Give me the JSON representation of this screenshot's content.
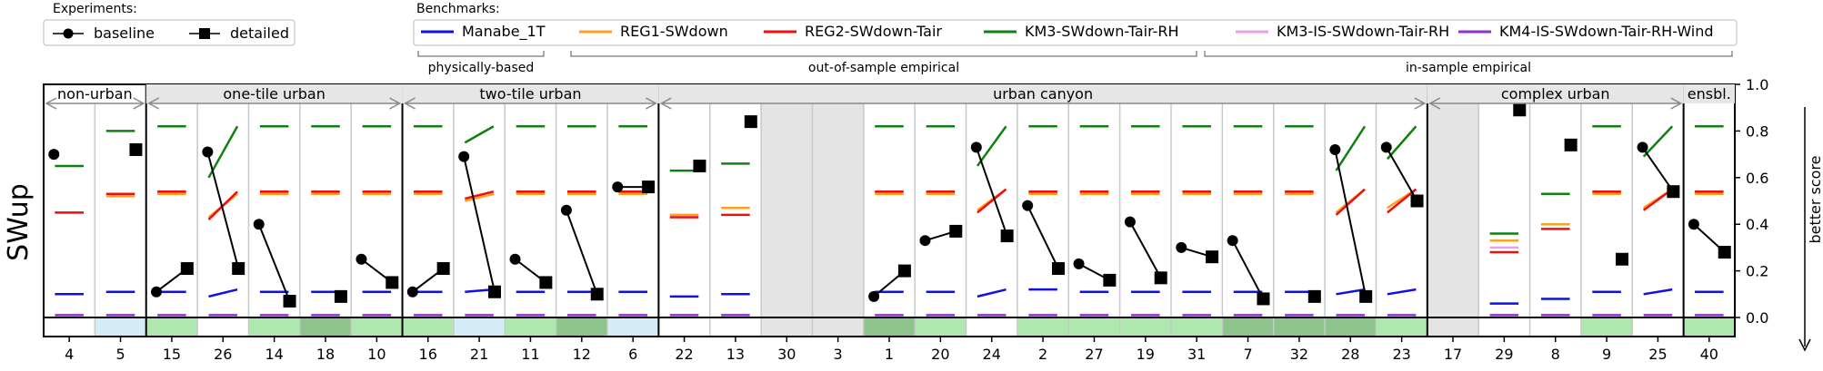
{
  "chart_data": {
    "type": "line",
    "ylabel": "SWup",
    "ylim": [
      -0.08,
      1.0
    ],
    "y_ticks": [
      "1.0",
      "0.8",
      "0.6",
      "0.4",
      "0.2",
      "0.0"
    ],
    "y_tick_values": [
      1.0,
      0.8,
      0.6,
      0.4,
      0.2,
      0.0
    ],
    "better_score_label": "better score",
    "experiments_title": "Experiments:",
    "experiments": [
      {
        "name": "baseline",
        "marker": "circle"
      },
      {
        "name": "detailed",
        "marker": "square"
      }
    ],
    "benchmarks_title": "Benchmarks:",
    "benchmarks": [
      {
        "key": "manabe",
        "name": "Manabe_1T",
        "color": "#1010e0"
      },
      {
        "key": "reg1",
        "name": "REG1-SWdown",
        "color": "#ffa020"
      },
      {
        "key": "reg2",
        "name": "REG2-SWdown-Tair",
        "color": "#ee1010"
      },
      {
        "key": "km3",
        "name": "KM3-SWdown-Tair-RH",
        "color": "#108010"
      },
      {
        "key": "km3is",
        "name": "KM3-IS-SWdown-Tair-RH",
        "color": "#e8a0e8"
      },
      {
        "key": "km4is",
        "name": "KM4-IS-SWdown-Tair-RH-Wind",
        "color": "#9030d0"
      }
    ],
    "benchmark_groups": [
      "physically-based",
      "out-of-sample empirical",
      "in-sample empirical"
    ],
    "colors": {
      "shade": "#e6e6e6",
      "light_blue": "#d4ecf8",
      "light_green": "#aee8ae",
      "dark_green": "#8cc48c",
      "gray": "#e4e4e4"
    },
    "groups": [
      {
        "label": "non-urban",
        "start": 0,
        "end": 2,
        "shaded": false
      },
      {
        "label": "one-tile urban",
        "start": 2,
        "end": 7,
        "shaded": true
      },
      {
        "label": "two-tile urban",
        "start": 7,
        "end": 12,
        "shaded": true
      },
      {
        "label": "urban canyon",
        "start": 12,
        "end": 27,
        "shaded": true
      },
      {
        "label": "complex urban",
        "start": 27,
        "end": 32,
        "shaded": true
      },
      {
        "label": "ensbl.",
        "start": 32,
        "end": 33,
        "shaded": true
      }
    ],
    "sites": [
      {
        "id": "4",
        "baseline": 0.7,
        "detailed": null,
        "manabe": 0.1,
        "reg1": 0.45,
        "reg2": 0.45,
        "km3": 0.65,
        "km4is": 0.01,
        "bottom": "white"
      },
      {
        "id": "5",
        "baseline": null,
        "detailed": 0.72,
        "manabe": 0.11,
        "reg1": 0.52,
        "reg2": 0.53,
        "km3": 0.8,
        "km4is": 0.01,
        "bottom": "light_blue"
      },
      {
        "id": "15",
        "baseline": 0.11,
        "detailed": 0.21,
        "manabe": 0.11,
        "reg1": 0.53,
        "reg2": 0.54,
        "km3": 0.82,
        "km4is": 0.01,
        "bottom": "light_green"
      },
      {
        "id": "26",
        "baseline": 0.71,
        "detailed": 0.21,
        "manabe": 0.09,
        "manabe_end": 0.12,
        "reg1": 0.43,
        "reg1_end": 0.53,
        "reg2": 0.42,
        "reg2_end": 0.54,
        "km3": 0.6,
        "km3_end": 0.82,
        "km4is": 0.01,
        "bottom": "white"
      },
      {
        "id": "14",
        "baseline": 0.4,
        "detailed": 0.07,
        "manabe": 0.11,
        "reg1": 0.53,
        "reg2": 0.54,
        "km3": 0.82,
        "km4is": 0.01,
        "bottom": "light_green"
      },
      {
        "id": "18",
        "baseline": null,
        "detailed": 0.09,
        "manabe": 0.11,
        "reg1": 0.53,
        "reg2": 0.54,
        "km3": 0.82,
        "km4is": 0.01,
        "bottom": "dark_green"
      },
      {
        "id": "10",
        "baseline": 0.25,
        "detailed": 0.15,
        "manabe": 0.11,
        "reg1": 0.53,
        "reg2": 0.54,
        "km3": 0.82,
        "km4is": 0.01,
        "bottom": "light_green"
      },
      {
        "id": "16",
        "baseline": 0.11,
        "detailed": 0.21,
        "manabe": 0.11,
        "reg1": 0.53,
        "reg2": 0.54,
        "km3": 0.82,
        "km4is": 0.01,
        "bottom": "light_green"
      },
      {
        "id": "21",
        "baseline": 0.69,
        "detailed": 0.11,
        "manabe": 0.11,
        "manabe_end": 0.12,
        "reg1": 0.5,
        "reg1_end": 0.53,
        "reg2": 0.51,
        "reg2_end": 0.54,
        "km3": 0.75,
        "km3_end": 0.82,
        "km4is": 0.01,
        "bottom": "light_blue"
      },
      {
        "id": "11",
        "baseline": 0.25,
        "detailed": 0.15,
        "manabe": 0.11,
        "reg1": 0.53,
        "reg2": 0.54,
        "km3": 0.82,
        "km4is": 0.01,
        "bottom": "light_green"
      },
      {
        "id": "12",
        "baseline": 0.46,
        "detailed": 0.1,
        "manabe": 0.11,
        "reg1": 0.53,
        "reg2": 0.54,
        "km3": 0.82,
        "km4is": 0.01,
        "bottom": "dark_green"
      },
      {
        "id": "6",
        "baseline": 0.56,
        "detailed": 0.56,
        "manabe": 0.11,
        "reg1": 0.53,
        "reg2": 0.54,
        "km3": 0.82,
        "km4is": 0.01,
        "bottom": "light_blue"
      },
      {
        "id": "22",
        "baseline": null,
        "detailed": 0.65,
        "manabe": 0.09,
        "reg1": 0.44,
        "reg2": 0.43,
        "km3": 0.63,
        "km4is": 0.01,
        "bottom": "white"
      },
      {
        "id": "13",
        "baseline": null,
        "detailed": 0.84,
        "manabe": 0.1,
        "reg1": 0.47,
        "reg2": 0.44,
        "km3": 0.66,
        "km4is": 0.01,
        "bottom": "white"
      },
      {
        "id": "30",
        "baseline": null,
        "detailed": null,
        "gray": true,
        "bottom": "gray"
      },
      {
        "id": "3",
        "baseline": null,
        "detailed": null,
        "gray": true,
        "bottom": "gray"
      },
      {
        "id": "1",
        "baseline": 0.09,
        "detailed": 0.2,
        "manabe": 0.11,
        "reg1": 0.53,
        "reg2": 0.54,
        "km3": 0.82,
        "km4is": 0.01,
        "bottom": "dark_green"
      },
      {
        "id": "20",
        "baseline": 0.33,
        "detailed": 0.37,
        "manabe": 0.11,
        "reg1": 0.53,
        "reg2": 0.54,
        "km3": 0.82,
        "km4is": 0.01,
        "bottom": "light_green"
      },
      {
        "id": "24",
        "baseline": 0.73,
        "detailed": 0.35,
        "manabe": 0.09,
        "manabe_end": 0.12,
        "reg1": 0.46,
        "reg1_end": 0.55,
        "reg2": 0.45,
        "reg2_end": 0.55,
        "km3": 0.65,
        "km3_end": 0.82,
        "km4is": 0.01,
        "bottom": "white"
      },
      {
        "id": "2",
        "baseline": 0.48,
        "detailed": 0.21,
        "manabe": 0.12,
        "reg1": 0.53,
        "reg2": 0.54,
        "km3": 0.82,
        "km4is": 0.01,
        "bottom": "light_green"
      },
      {
        "id": "27",
        "baseline": 0.23,
        "detailed": 0.16,
        "manabe": 0.11,
        "reg1": 0.53,
        "reg2": 0.54,
        "km3": 0.82,
        "km4is": 0.01,
        "bottom": "light_green"
      },
      {
        "id": "19",
        "baseline": 0.41,
        "detailed": 0.17,
        "manabe": 0.11,
        "reg1": 0.53,
        "reg2": 0.54,
        "km3": 0.82,
        "km4is": 0.01,
        "bottom": "light_green"
      },
      {
        "id": "31",
        "baseline": 0.3,
        "detailed": 0.26,
        "manabe": 0.11,
        "reg1": 0.53,
        "reg2": 0.54,
        "km3": 0.82,
        "km4is": 0.01,
        "bottom": "light_green"
      },
      {
        "id": "7",
        "baseline": 0.33,
        "detailed": 0.08,
        "manabe": 0.11,
        "reg1": 0.53,
        "reg2": 0.54,
        "km3": 0.82,
        "km4is": 0.01,
        "bottom": "dark_green"
      },
      {
        "id": "32",
        "baseline": null,
        "detailed": 0.09,
        "manabe": 0.11,
        "reg1": 0.53,
        "reg2": 0.54,
        "km3": 0.82,
        "km4is": 0.01,
        "bottom": "dark_green"
      },
      {
        "id": "28",
        "baseline": 0.72,
        "detailed": 0.09,
        "manabe": 0.1,
        "manabe_end": 0.12,
        "reg1": 0.45,
        "reg1_end": 0.55,
        "reg2": 0.44,
        "reg2_end": 0.55,
        "km3": 0.63,
        "km3_end": 0.82,
        "km4is": 0.01,
        "bottom": "dark_green"
      },
      {
        "id": "23",
        "baseline": 0.73,
        "detailed": 0.5,
        "manabe": 0.1,
        "manabe_end": 0.12,
        "reg1": 0.47,
        "reg1_end": 0.55,
        "reg2": 0.45,
        "reg2_end": 0.55,
        "km3": 0.68,
        "km3_end": 0.82,
        "km4is": 0.01,
        "bottom": "light_green"
      },
      {
        "id": "17",
        "baseline": null,
        "detailed": null,
        "gray": true,
        "bottom": "gray"
      },
      {
        "id": "29",
        "baseline": null,
        "detailed": 0.89,
        "manabe": 0.06,
        "reg1": 0.33,
        "reg2": 0.28,
        "km3": 0.36,
        "km3is": 0.3,
        "km4is": 0.01,
        "bottom": "white"
      },
      {
        "id": "8",
        "baseline": null,
        "detailed": 0.74,
        "manabe": 0.08,
        "reg1": 0.4,
        "reg2": 0.38,
        "km3": 0.53,
        "km4is": 0.01,
        "bottom": "white"
      },
      {
        "id": "9",
        "baseline": null,
        "detailed": 0.25,
        "manabe": 0.11,
        "reg1": 0.53,
        "reg2": 0.54,
        "km3": 0.82,
        "km4is": 0.01,
        "bottom": "light_green"
      },
      {
        "id": "25",
        "baseline": 0.73,
        "detailed": 0.54,
        "manabe": 0.1,
        "manabe_end": 0.12,
        "reg1": 0.47,
        "reg1_end": 0.55,
        "reg2": 0.46,
        "reg2_end": 0.55,
        "km3": 0.69,
        "km3_end": 0.82,
        "km4is": 0.01,
        "bottom": "white"
      },
      {
        "id": "40",
        "baseline": 0.4,
        "detailed": 0.28,
        "manabe": 0.11,
        "reg1": 0.53,
        "reg2": 0.54,
        "km3": 0.82,
        "km4is": 0.01,
        "bottom": "light_green"
      }
    ]
  }
}
